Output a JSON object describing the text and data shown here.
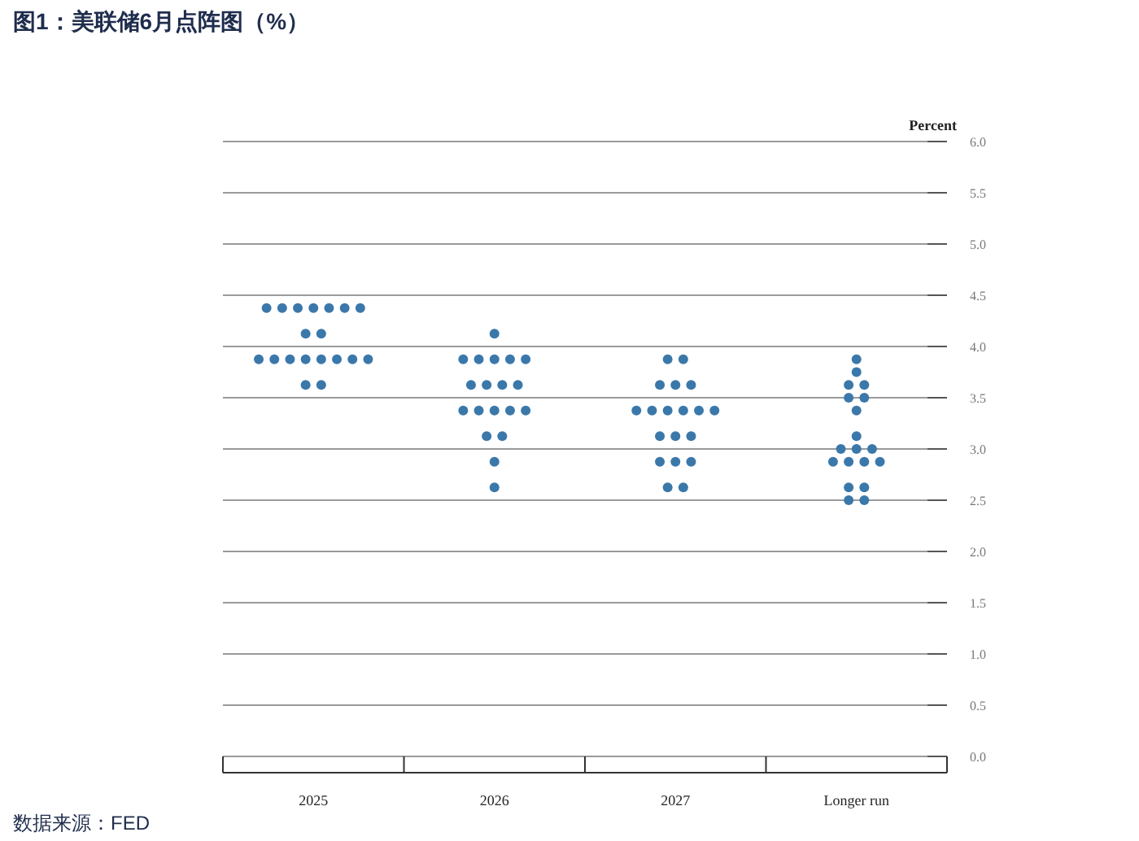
{
  "chart_data": {
    "type": "scatter",
    "title": "图1：美联储6月点阵图（%）",
    "ylabel": "Percent",
    "categories": [
      "2025",
      "2026",
      "2027",
      "Longer run"
    ],
    "series": [
      {
        "color": "#3b78aa",
        "values": [
          4.375,
          4.125,
          3.875,
          3.875
        ]
      },
      {
        "color": "#3b78aa",
        "values": [
          4.375,
          3.875,
          3.875,
          3.75
        ]
      },
      {
        "color": "#3b78aa",
        "values": [
          4.375,
          3.875,
          3.625,
          3.625
        ]
      },
      {
        "color": "#3b78aa",
        "values": [
          4.375,
          3.875,
          3.625,
          3.625
        ]
      },
      {
        "color": "#3b78aa",
        "values": [
          4.375,
          3.875,
          3.625,
          3.5
        ]
      },
      {
        "color": "#3b78aa",
        "values": [
          4.375,
          3.875,
          3.375,
          3.5
        ]
      },
      {
        "color": "#3b78aa",
        "values": [
          4.375,
          3.625,
          3.375,
          3.375
        ]
      },
      {
        "color": "#3b78aa",
        "values": [
          4.125,
          3.625,
          3.375,
          3.125
        ]
      },
      {
        "color": "#3b78aa",
        "values": [
          4.125,
          3.625,
          3.375,
          3.0
        ]
      },
      {
        "color": "#3b78aa",
        "values": [
          3.875,
          3.625,
          3.375,
          3.0
        ]
      },
      {
        "color": "#3b78aa",
        "values": [
          3.875,
          3.375,
          3.375,
          3.0
        ]
      },
      {
        "color": "#3b78aa",
        "values": [
          3.875,
          3.375,
          3.125,
          2.875
        ]
      },
      {
        "color": "#3b78aa",
        "values": [
          3.875,
          3.375,
          3.125,
          2.875
        ]
      },
      {
        "color": "#3b78aa",
        "values": [
          3.875,
          3.375,
          3.125,
          2.875
        ]
      },
      {
        "color": "#3b78aa",
        "values": [
          3.875,
          3.375,
          2.875,
          2.875
        ]
      },
      {
        "color": "#3b78aa",
        "values": [
          3.875,
          3.125,
          2.875,
          2.625
        ]
      },
      {
        "color": "#3b78aa",
        "values": [
          3.875,
          3.125,
          2.875,
          2.625
        ]
      },
      {
        "color": "#3b78aa",
        "values": [
          3.625,
          2.875,
          2.625,
          2.5
        ]
      },
      {
        "color": "#3b78aa",
        "values": [
          3.625,
          2.625,
          2.625,
          2.5
        ]
      }
    ],
    "ylim": [
      0,
      6
    ],
    "yticks": [
      {
        "value": 0,
        "label": "0.0"
      },
      {
        "value": 0.5,
        "label": "0.5"
      },
      {
        "value": 1,
        "label": "1.0"
      },
      {
        "value": 1.5,
        "label": "1.5"
      },
      {
        "value": 2,
        "label": "2.0"
      },
      {
        "value": 2.5,
        "label": "2.5"
      },
      {
        "value": 3,
        "label": "3.0"
      },
      {
        "value": 3.5,
        "label": "3.5"
      },
      {
        "value": 4,
        "label": "4.0"
      },
      {
        "value": 4.5,
        "label": "4.5"
      },
      {
        "value": 5,
        "label": "5.0"
      },
      {
        "value": 5.5,
        "label": "5.5"
      },
      {
        "value": 6,
        "label": "6.0"
      }
    ],
    "grid": "y",
    "marker": "circle",
    "annotations": [
      "数据来源：FED"
    ]
  }
}
